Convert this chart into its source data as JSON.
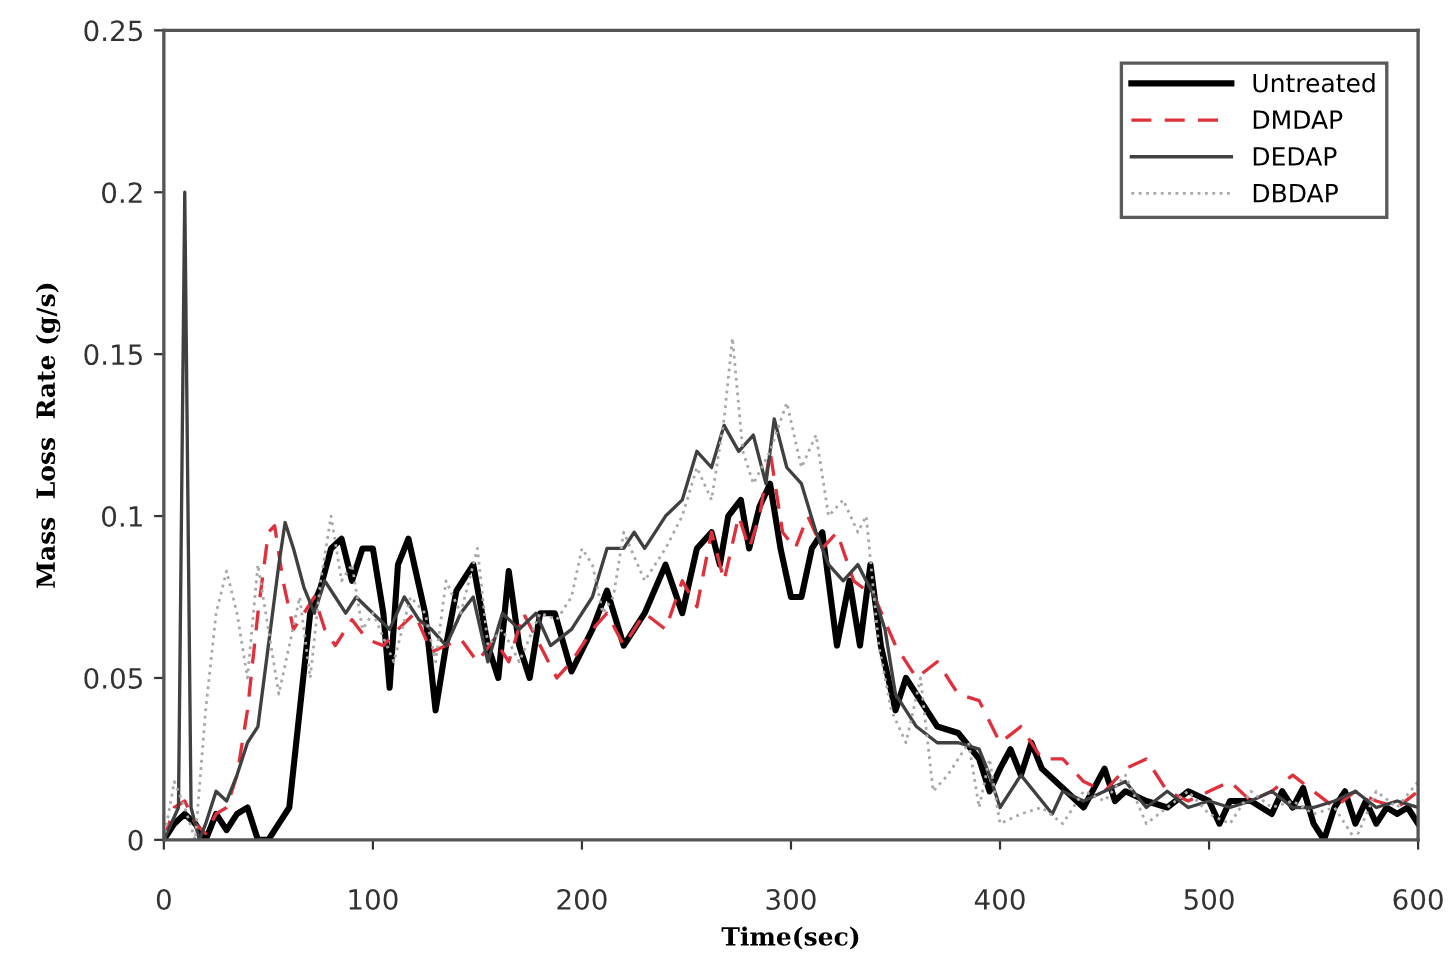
{
  "chart_data": {
    "type": "line",
    "xlabel": "Time(sec)",
    "ylabel": "Mass  Loss  Rate (g/s)",
    "xlim": [
      0,
      600
    ],
    "ylim": [
      0,
      0.25
    ],
    "xticks": [
      0,
      100,
      200,
      300,
      400,
      500,
      600
    ],
    "yticks": [
      0,
      0.05,
      0.1,
      0.15,
      0.2,
      0.25
    ],
    "grid": false,
    "legend": "top right",
    "marker": "none",
    "series": [
      {
        "name": "Untreated",
        "color": "#000000",
        "line_style": "solid",
        "x": [
          0,
          5,
          10,
          15,
          20,
          25,
          30,
          35,
          40,
          45,
          50,
          55,
          60,
          65,
          70,
          75,
          80,
          85,
          90,
          95,
          100,
          105,
          108,
          112,
          117,
          125,
          130,
          135,
          140,
          148,
          155,
          160,
          165,
          170,
          175,
          180,
          187,
          195,
          205,
          212,
          220,
          230,
          240,
          248,
          255,
          262,
          266,
          270,
          276,
          280,
          285,
          290,
          295,
          300,
          305,
          310,
          315,
          322,
          328,
          333,
          338,
          343,
          350,
          355,
          360,
          370,
          380,
          390,
          395,
          400,
          405,
          410,
          415,
          420,
          430,
          440,
          450,
          455,
          460,
          470,
          480,
          490,
          500,
          505,
          510,
          520,
          530,
          535,
          540,
          545,
          550,
          555,
          560,
          565,
          570,
          575,
          580,
          585,
          590,
          595,
          600
        ],
        "values": [
          0,
          0.005,
          0.008,
          0.005,
          0,
          0.008,
          0.003,
          0.008,
          0.01,
          0,
          0,
          0.005,
          0.01,
          0.04,
          0.07,
          0.078,
          0.09,
          0.093,
          0.08,
          0.09,
          0.09,
          0.07,
          0.047,
          0.085,
          0.093,
          0.07,
          0.04,
          0.06,
          0.077,
          0.085,
          0.06,
          0.05,
          0.083,
          0.06,
          0.05,
          0.07,
          0.07,
          0.052,
          0.065,
          0.077,
          0.06,
          0.07,
          0.085,
          0.07,
          0.09,
          0.095,
          0.085,
          0.1,
          0.105,
          0.09,
          0.103,
          0.11,
          0.09,
          0.075,
          0.075,
          0.09,
          0.095,
          0.06,
          0.08,
          0.06,
          0.085,
          0.06,
          0.04,
          0.05,
          0.045,
          0.035,
          0.033,
          0.025,
          0.015,
          0.022,
          0.028,
          0.02,
          0.03,
          0.022,
          0.016,
          0.01,
          0.022,
          0.012,
          0.015,
          0.012,
          0.01,
          0.015,
          0.012,
          0.005,
          0.012,
          0.012,
          0.008,
          0.015,
          0.01,
          0.016,
          0.005,
          0,
          0.01,
          0.015,
          0.005,
          0.012,
          0.005,
          0.01,
          0.008,
          0.01,
          0.005
        ]
      },
      {
        "name": "DMDAP",
        "color": "#e0303c",
        "line_style": "dashed",
        "x": [
          0,
          5,
          10,
          15,
          20,
          25,
          30,
          35,
          40,
          45,
          50,
          53,
          57,
          62,
          67,
          72,
          77,
          82,
          90,
          97,
          105,
          112,
          120,
          128,
          135,
          142,
          150,
          158,
          165,
          172,
          180,
          188,
          195,
          205,
          212,
          220,
          230,
          240,
          248,
          255,
          262,
          268,
          275,
          280,
          285,
          290,
          296,
          302,
          308,
          315,
          322,
          330,
          340,
          350,
          360,
          370,
          380,
          390,
          400,
          410,
          420,
          430,
          440,
          450,
          460,
          470,
          480,
          490,
          500,
          510,
          520,
          530,
          540,
          550,
          560,
          570,
          580,
          590,
          600
        ],
        "values": [
          0,
          0.01,
          0.012,
          0.005,
          0.002,
          0.008,
          0.01,
          0.02,
          0.04,
          0.07,
          0.095,
          0.097,
          0.08,
          0.065,
          0.07,
          0.075,
          0.065,
          0.06,
          0.068,
          0.062,
          0.06,
          0.065,
          0.07,
          0.058,
          0.06,
          0.062,
          0.055,
          0.062,
          0.055,
          0.07,
          0.06,
          0.05,
          0.055,
          0.065,
          0.07,
          0.06,
          0.07,
          0.065,
          0.08,
          0.072,
          0.095,
          0.08,
          0.1,
          0.09,
          0.1,
          0.12,
          0.095,
          0.09,
          0.1,
          0.09,
          0.095,
          0.08,
          0.075,
          0.06,
          0.05,
          0.055,
          0.045,
          0.043,
          0.03,
          0.035,
          0.025,
          0.025,
          0.018,
          0.015,
          0.022,
          0.025,
          0.015,
          0.012,
          0.015,
          0.018,
          0.012,
          0.015,
          0.02,
          0.015,
          0.01,
          0.015,
          0.012,
          0.01,
          0.015
        ]
      },
      {
        "name": "DEDAP",
        "color": "#404040",
        "line_style": "solid",
        "x": [
          0,
          7,
          10,
          13,
          17,
          20,
          25,
          30,
          35,
          40,
          45,
          50,
          55,
          58,
          62,
          67,
          72,
          77,
          82,
          87,
          92,
          100,
          108,
          115,
          122,
          128,
          135,
          142,
          148,
          155,
          162,
          170,
          178,
          185,
          195,
          205,
          212,
          220,
          225,
          230,
          240,
          248,
          255,
          262,
          268,
          275,
          282,
          288,
          292,
          298,
          305,
          312,
          318,
          325,
          332,
          340,
          345,
          350,
          355,
          360,
          370,
          380,
          390,
          395,
          400,
          405,
          410,
          420,
          425,
          430,
          440,
          450,
          460,
          470,
          480,
          490,
          500,
          510,
          520,
          530,
          540,
          550,
          560,
          570,
          580,
          590,
          600
        ],
        "values": [
          0,
          0.01,
          0.2,
          0.01,
          0,
          0.005,
          0.015,
          0.012,
          0.02,
          0.03,
          0.035,
          0.06,
          0.085,
          0.098,
          0.09,
          0.078,
          0.07,
          0.08,
          0.075,
          0.07,
          0.075,
          0.07,
          0.065,
          0.075,
          0.068,
          0.065,
          0.06,
          0.07,
          0.075,
          0.055,
          0.07,
          0.065,
          0.07,
          0.06,
          0.065,
          0.075,
          0.09,
          0.09,
          0.095,
          0.09,
          0.1,
          0.105,
          0.12,
          0.115,
          0.128,
          0.12,
          0.125,
          0.11,
          0.13,
          0.115,
          0.11,
          0.095,
          0.085,
          0.08,
          0.085,
          0.075,
          0.065,
          0.045,
          0.04,
          0.035,
          0.03,
          0.03,
          0.028,
          0.02,
          0.01,
          0.015,
          0.02,
          0.012,
          0.008,
          0.015,
          0.012,
          0.015,
          0.018,
          0.01,
          0.015,
          0.01,
          0.012,
          0.01,
          0.012,
          0.015,
          0.01,
          0.01,
          0.012,
          0.015,
          0.01,
          0.012,
          0.01
        ]
      },
      {
        "name": "DBDAP",
        "color": "#a8a8a8",
        "line_style": "dotted",
        "x": [
          0,
          5,
          10,
          15,
          20,
          25,
          30,
          35,
          40,
          45,
          50,
          55,
          60,
          65,
          70,
          75,
          80,
          85,
          90,
          95,
          100,
          110,
          118,
          125,
          130,
          135,
          142,
          150,
          155,
          162,
          170,
          180,
          188,
          195,
          200,
          205,
          210,
          215,
          220,
          230,
          240,
          248,
          255,
          262,
          268,
          272,
          277,
          282,
          290,
          298,
          305,
          312,
          318,
          325,
          332,
          336,
          342,
          348,
          355,
          362,
          368,
          375,
          385,
          390,
          395,
          400,
          410,
          420,
          430,
          440,
          450,
          460,
          470,
          480,
          490,
          500,
          510,
          520,
          530,
          540,
          550,
          560,
          570,
          580,
          590,
          600
        ],
        "values": [
          0,
          0.018,
          0.01,
          0,
          0.04,
          0.07,
          0.083,
          0.07,
          0.05,
          0.085,
          0.065,
          0.045,
          0.06,
          0.075,
          0.05,
          0.08,
          0.1,
          0.08,
          0.085,
          0.065,
          0.07,
          0.055,
          0.075,
          0.07,
          0.055,
          0.08,
          0.07,
          0.09,
          0.06,
          0.065,
          0.055,
          0.07,
          0.068,
          0.075,
          0.09,
          0.085,
          0.07,
          0.075,
          0.095,
          0.08,
          0.09,
          0.1,
          0.115,
          0.105,
          0.13,
          0.155,
          0.12,
          0.11,
          0.12,
          0.135,
          0.115,
          0.125,
          0.1,
          0.105,
          0.095,
          0.1,
          0.06,
          0.04,
          0.03,
          0.05,
          0.015,
          0.02,
          0.03,
          0.01,
          0.025,
          0.005,
          0.008,
          0.01,
          0.005,
          0.015,
          0.012,
          0.02,
          0.005,
          0.01,
          0.015,
          0.008,
          0.005,
          0.015,
          0.01,
          0.012,
          0.008,
          0.01,
          0,
          0.015,
          0.01,
          0.018
        ]
      }
    ]
  }
}
